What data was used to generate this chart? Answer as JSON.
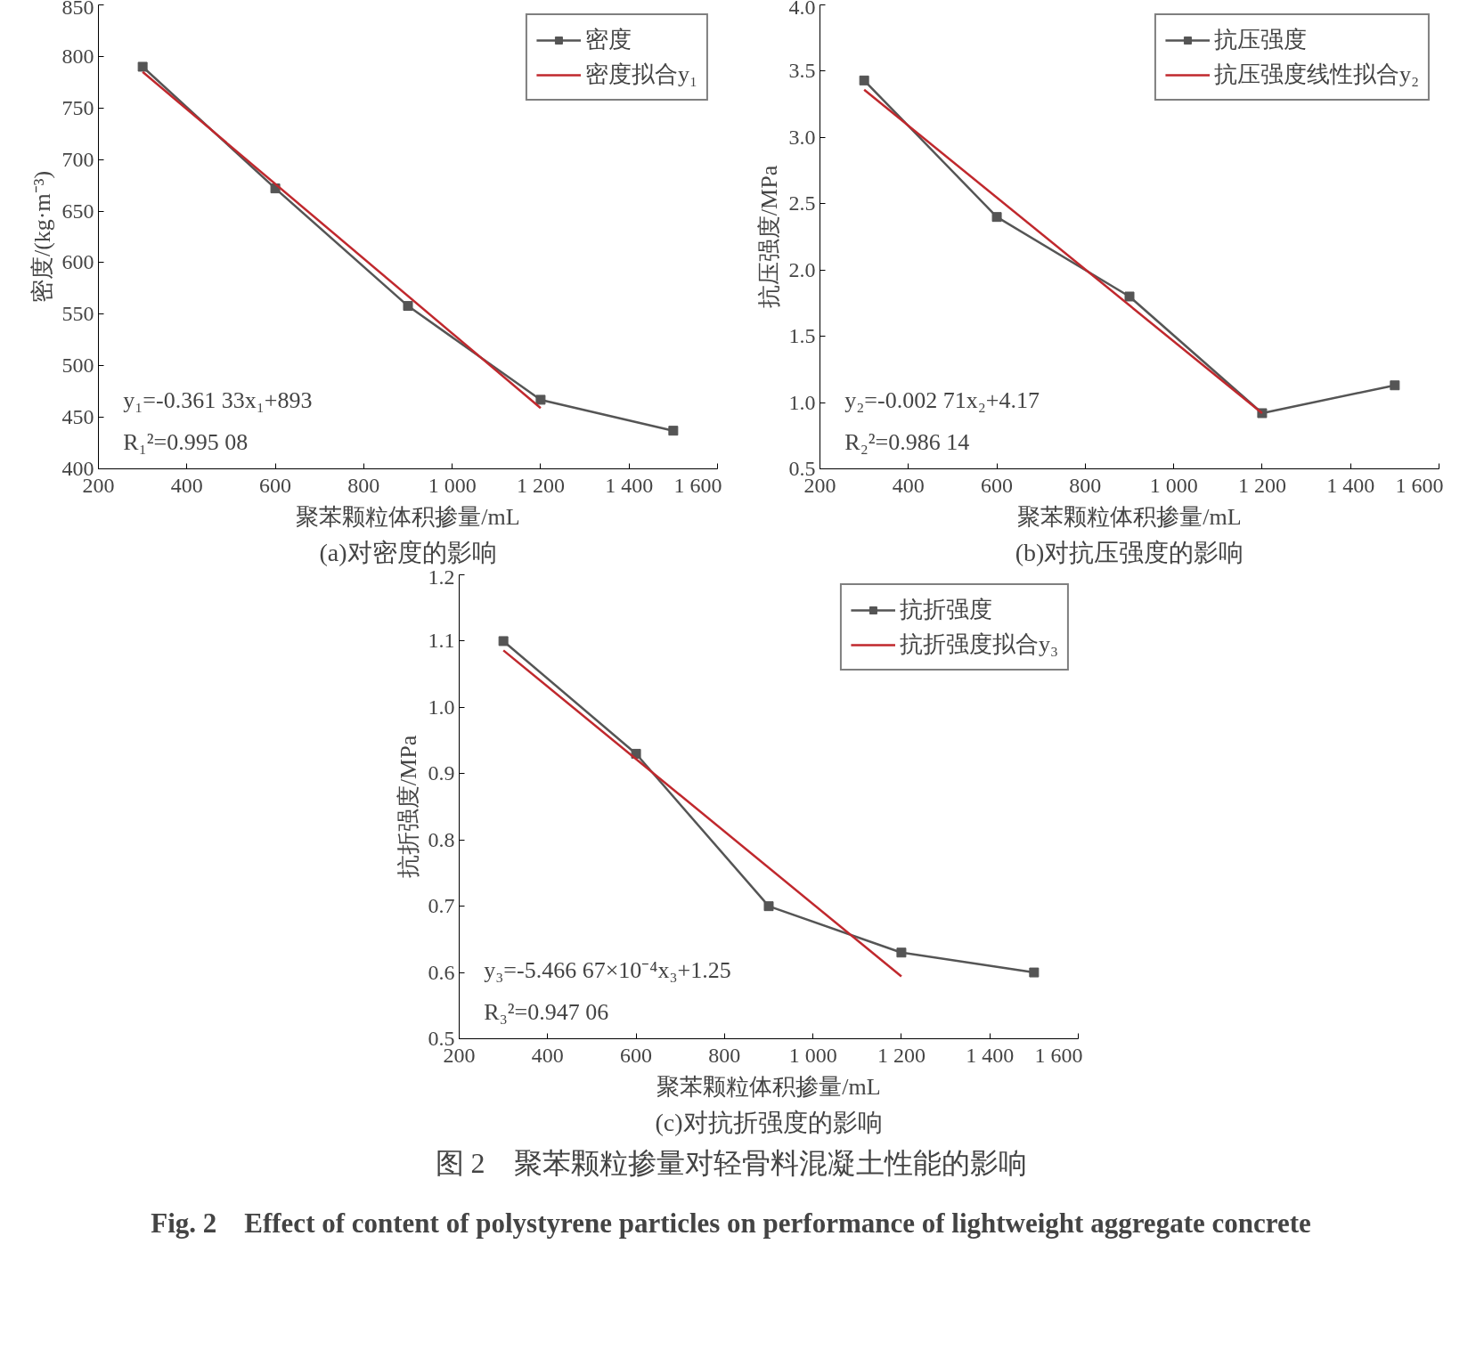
{
  "chart_data": [
    {
      "type": "line",
      "title": "(a)对密度的影响",
      "xlabel": "聚苯颗粒体积掺量/mL",
      "ylabel": "密度/(kg·m⁻³)",
      "xlim": [
        200,
        1600
      ],
      "xticks": [
        200,
        400,
        600,
        800,
        {
          "value": 1000,
          "label": "1 000"
        },
        {
          "value": 1200,
          "label": "1 200"
        },
        {
          "value": 1400,
          "label": "1 400"
        },
        {
          "value": 1600,
          "label": "1 600"
        }
      ],
      "ylim": [
        400,
        850
      ],
      "yticks": [
        400,
        450,
        500,
        550,
        600,
        650,
        700,
        750,
        800,
        850
      ],
      "legend": "top right",
      "annotations": [
        "y₁=-0.361 33x₁+893",
        "R₁²=0.995 08"
      ],
      "series": [
        {
          "name": "密度",
          "color": "#555555",
          "marker": "square",
          "x": [
            300,
            600,
            900,
            1200,
            1500
          ],
          "values": [
            790,
            672,
            558,
            467,
            437
          ]
        },
        {
          "name": "密度拟合y₁",
          "color": "#c0282d",
          "x": [
            300,
            1200
          ],
          "values": [
            785,
            459
          ]
        }
      ]
    },
    {
      "type": "line",
      "title": "(b)对抗压强度的影响",
      "xlabel": "聚苯颗粒体积掺量/mL",
      "ylabel": "抗压强度/MPa",
      "xlim": [
        200,
        1600
      ],
      "xticks": [
        200,
        400,
        600,
        800,
        {
          "value": 1000,
          "label": "1 000"
        },
        {
          "value": 1200,
          "label": "1 200"
        },
        {
          "value": 1400,
          "label": "1 400"
        },
        {
          "value": 1600,
          "label": "1 600"
        }
      ],
      "ylim": [
        0.5,
        4.0
      ],
      "yticks": [
        {
          "value": 0.5,
          "label": "0.5"
        },
        {
          "value": 1.0,
          "label": "1.0"
        },
        {
          "value": 1.5,
          "label": "1.5"
        },
        {
          "value": 2.0,
          "label": "2.0"
        },
        {
          "value": 2.5,
          "label": "2.5"
        },
        {
          "value": 3.0,
          "label": "3.0"
        },
        {
          "value": 3.5,
          "label": "3.5"
        },
        {
          "value": 4.0,
          "label": "4.0"
        }
      ],
      "legend": "top right",
      "annotations": [
        "y₂=-0.002 71x₂+4.17",
        "R₂²=0.986 14"
      ],
      "series": [
        {
          "name": "抗压强度",
          "color": "#555555",
          "marker": "square",
          "x": [
            300,
            600,
            900,
            1200,
            1500
          ],
          "values": [
            3.43,
            2.4,
            1.8,
            0.92,
            1.13
          ]
        },
        {
          "name": "抗压强度线性拟合y₂",
          "color": "#c0282d",
          "x": [
            300,
            1200
          ],
          "values": [
            3.36,
            0.92
          ]
        }
      ]
    },
    {
      "type": "line",
      "title": "(c)对抗折强度的影响",
      "xlabel": "聚苯颗粒体积掺量/mL",
      "ylabel": "抗折强度/MPa",
      "xlim": [
        200,
        1600
      ],
      "xticks": [
        200,
        400,
        600,
        800,
        {
          "value": 1000,
          "label": "1 000"
        },
        {
          "value": 1200,
          "label": "1 200"
        },
        {
          "value": 1400,
          "label": "1 400"
        },
        {
          "value": 1600,
          "label": "1 600"
        }
      ],
      "ylim": [
        0.5,
        1.2
      ],
      "yticks": [
        0.5,
        0.6,
        0.7,
        0.8,
        0.9,
        {
          "value": 1.0,
          "label": "1.0"
        },
        1.1,
        1.2
      ],
      "legend": "top right",
      "annotations": [
        "y₃=-5.466 67×10⁻⁴x₃+1.25",
        "R₃²=0.947 06"
      ],
      "series": [
        {
          "name": "抗折强度",
          "color": "#555555",
          "marker": "square",
          "x": [
            300,
            600,
            900,
            1200,
            1500
          ],
          "values": [
            1.1,
            0.93,
            0.7,
            0.63,
            0.6
          ]
        },
        {
          "name": "抗折强度拟合y₃",
          "color": "#c0282d",
          "x": [
            300,
            1200
          ],
          "values": [
            1.086,
            0.594
          ]
        }
      ]
    },
    {
      "type": "other",
      "title": "图 2　聚苯颗粒掺量对轻骨料混凝土性能的影响",
      "subtitle": "Fig. 2　Effect of content of polystyrene particles on performance of lightweight aggregate concrete"
    }
  ]
}
